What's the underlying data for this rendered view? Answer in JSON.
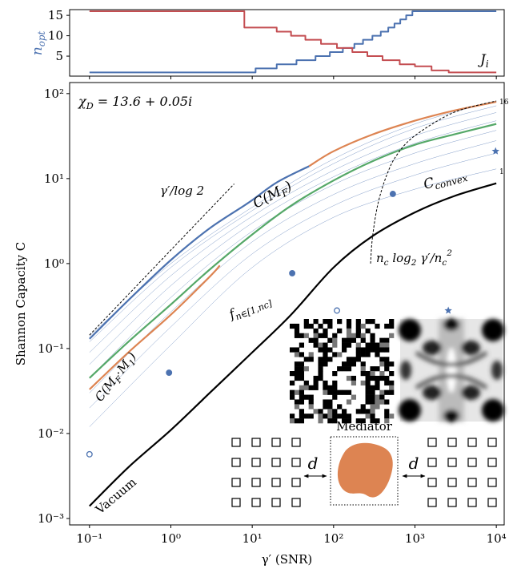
{
  "chart_data": [
    {
      "type": "line",
      "steps": true,
      "xscale": "log",
      "xlim": [
        0.057,
        12500
      ],
      "ylim": [
        0.1,
        16.4
      ],
      "xticks": [
        0.1,
        1,
        10,
        100,
        1000,
        10000
      ],
      "yticks": [
        5,
        10,
        15
      ],
      "ylabel": [
        "n",
        {
          "sub": "opt"
        }
      ],
      "ylabel_color": "#4c72b0",
      "series": [
        {
          "color": "#4c72b0",
          "x": [
            0.1,
            11,
            20,
            35,
            60,
            90,
            130,
            180,
            230,
            300,
            380,
            470,
            560,
            660,
            780,
            930,
            10000
          ],
          "values": [
            1,
            2,
            3,
            4,
            5,
            6,
            7,
            8,
            9,
            10,
            11,
            12,
            13,
            14,
            15,
            16,
            16
          ]
        },
        {
          "color": "#c44e52",
          "x": [
            0.1,
            8,
            20,
            30,
            45,
            70,
            110,
            170,
            260,
            400,
            650,
            1000,
            1600,
            2600,
            10000
          ],
          "values": [
            16,
            12,
            11,
            10,
            9,
            8,
            7,
            6,
            5,
            4,
            3,
            2.5,
            1.5,
            1,
            1
          ]
        }
      ],
      "annotations": [
        {
          "parts": [
            "J",
            {
              "sub": "i"
            }
          ],
          "color": "#c44e52"
        }
      ]
    },
    {
      "type": "line",
      "xscale": "log",
      "yscale": "log",
      "xlim": [
        0.057,
        12500
      ],
      "ylim": [
        0.00084,
        135
      ],
      "xticks": [
        {
          "value": 0.1,
          "label": "10⁻¹"
        },
        {
          "value": 1,
          "label": "10⁰"
        },
        {
          "value": 10,
          "label": "10¹"
        },
        {
          "value": 100,
          "label": "10²"
        },
        {
          "value": 1000,
          "label": "10³"
        },
        {
          "value": 10000,
          "label": "10⁴"
        }
      ],
      "yticks": [
        {
          "value": 0.001,
          "label": "10⁻³"
        },
        {
          "value": 0.01,
          "label": "10⁻²"
        },
        {
          "value": 0.1,
          "label": "10⁻¹"
        },
        {
          "value": 1,
          "label": "10⁰"
        },
        {
          "value": 10,
          "label": "10¹"
        },
        {
          "value": 100,
          "label": "10²"
        }
      ],
      "xlabel": "γ′ (SNR)",
      "ylabel": "Shannon Capacity C",
      "series": [
        {
          "color": "#4c72b0",
          "width": 0.5,
          "x": [
            0.1,
            1,
            10,
            100,
            1000,
            10000
          ],
          "values": [
            0.012,
            0.11,
            0.9,
            3.5,
            7.5,
            13
          ]
        },
        {
          "color": "#4c72b0",
          "width": 0.5,
          "x": [
            0.1,
            1,
            10,
            100,
            1000,
            10000
          ],
          "values": [
            0.02,
            0.18,
            1.3,
            4.8,
            11,
            20
          ]
        },
        {
          "color": "#4c72b0",
          "width": 0.5,
          "x": [
            0.1,
            1,
            10,
            100,
            1000,
            10000
          ],
          "values": [
            0.03,
            0.27,
            1.8,
            6.5,
            15,
            28
          ]
        },
        {
          "color": "#4c72b0",
          "width": 0.5,
          "x": [
            0.1,
            1,
            10,
            100,
            1000,
            10000
          ],
          "values": [
            0.045,
            0.4,
            2.4,
            8.5,
            20,
            37
          ]
        },
        {
          "color": "#4c72b0",
          "width": 0.5,
          "x": [
            0.1,
            1,
            10,
            100,
            1000,
            10000
          ],
          "values": [
            0.065,
            0.55,
            3.0,
            10.5,
            26,
            48
          ]
        },
        {
          "color": "#4c72b0",
          "width": 0.5,
          "x": [
            0.1,
            1,
            10,
            100,
            1000,
            10000
          ],
          "values": [
            0.09,
            0.72,
            3.6,
            12.5,
            32,
            60
          ]
        },
        {
          "color": "#4c72b0",
          "width": 0.5,
          "x": [
            0.1,
            1,
            10,
            100,
            1000,
            10000
          ],
          "values": [
            0.12,
            0.9,
            4.2,
            15,
            39,
            72
          ]
        },
        {
          "color": "#4c72b0",
          "width": 0.5,
          "x": [
            0.1,
            1,
            10,
            100,
            1000,
            10000
          ],
          "values": [
            0.14,
            1.0,
            4.6,
            17,
            44,
            82
          ]
        },
        {
          "color": "#55a868",
          "width": 2.2,
          "x": [
            0.1,
            0.3,
            1,
            3,
            10,
            30,
            100,
            300,
            1000,
            3000,
            10000
          ],
          "values": [
            0.045,
            0.12,
            0.33,
            0.85,
            2.2,
            4.8,
            9.5,
            16,
            25,
            33,
            44
          ]
        },
        {
          "color": "#dd8452",
          "width": 2.2,
          "x": [
            0.1,
            0.3,
            1,
            3,
            4
          ],
          "values": [
            0.033,
            0.09,
            0.25,
            0.7,
            0.95
          ]
        },
        {
          "color": "#4c72b0",
          "width": 2.2,
          "x": [
            0.1,
            0.3,
            1,
            3,
            9,
            20,
            50
          ],
          "values": [
            0.13,
            0.37,
            1.1,
            2.6,
            5.2,
            9,
            14
          ]
        },
        {
          "color": "#dd8452",
          "width": 2.2,
          "x": [
            50,
            100,
            300,
            1000,
            3000,
            10000
          ],
          "values": [
            14,
            21,
            33,
            48,
            63,
            80
          ]
        },
        {
          "color": "#000000",
          "width": 2.2,
          "x": [
            0.1,
            0.3,
            1,
            3,
            10,
            30,
            100,
            300,
            1000,
            3000,
            10000
          ],
          "values": [
            0.0014,
            0.004,
            0.011,
            0.03,
            0.09,
            0.25,
            0.9,
            2.1,
            4.0,
            6.2,
            8.8
          ]
        },
        {
          "color": "#000000",
          "width": 1,
          "dash": true,
          "x": [
            0.1,
            6
          ],
          "values": [
            0.144,
            8.66
          ]
        },
        {
          "color": "#000000",
          "width": 1,
          "dash": true,
          "x": [
            285,
            300,
            350,
            450,
            600,
            1000,
            3000,
            10000
          ],
          "values": [
            1.0,
            2,
            5,
            11,
            19,
            32,
            60,
            82
          ]
        }
      ],
      "scatter": [
        {
          "marker": "circle",
          "filled": true,
          "color": "#4c72b0",
          "x": [
            0.95,
            31,
            535
          ],
          "values": [
            0.052,
            0.77,
            6.6
          ]
        },
        {
          "marker": "circle",
          "filled": false,
          "color": "#4c72b0",
          "x": [
            0.1,
            110
          ],
          "values": [
            0.0057,
            0.28
          ]
        },
        {
          "marker": "star",
          "filled": true,
          "color": "#4c72b0",
          "x": [
            2570,
            9800
          ],
          "values": [
            0.28,
            21
          ]
        }
      ],
      "annotations": [
        {
          "parts": [
            "χ",
            {
              "sub": "D"
            },
            " = 13.6 + 0.05i"
          ],
          "color": "#000000"
        },
        {
          "parts": [
            "γ′/log 2"
          ],
          "color": "#000000"
        },
        {
          "parts": [
            "C(M",
            {
              "sub": "F"
            },
            ")"
          ],
          "color": "#4c72b0"
        },
        {
          "parts": [
            "C",
            {
              "sub": "convex"
            }
          ],
          "color": "#55a868"
        },
        {
          "parts": [
            "n",
            {
              "sub": "c"
            },
            " log",
            {
              "sub": "2"
            },
            " γ′/n",
            {
              "sub": "c"
            },
            {
              "sup": "2"
            }
          ],
          "color": "#000000"
        },
        {
          "parts": [
            "f",
            {
              "sub": "n∈[1,nc]"
            }
          ],
          "color": "#4c72b0"
        },
        {
          "parts": [
            "C(M",
            {
              "sub": "F"
            },
            "·M",
            {
              "sub": "1"
            },
            ")"
          ],
          "color": "#dd8452"
        },
        {
          "parts": [
            "Vacuum"
          ],
          "color": "#000000"
        },
        {
          "parts": [
            "16"
          ],
          "color": "#4c72b0"
        },
        {
          "parts": [
            "1"
          ],
          "color": "#4c72b0"
        }
      ]
    }
  ],
  "diagram": {
    "label": "Mediator",
    "distance": "d"
  }
}
